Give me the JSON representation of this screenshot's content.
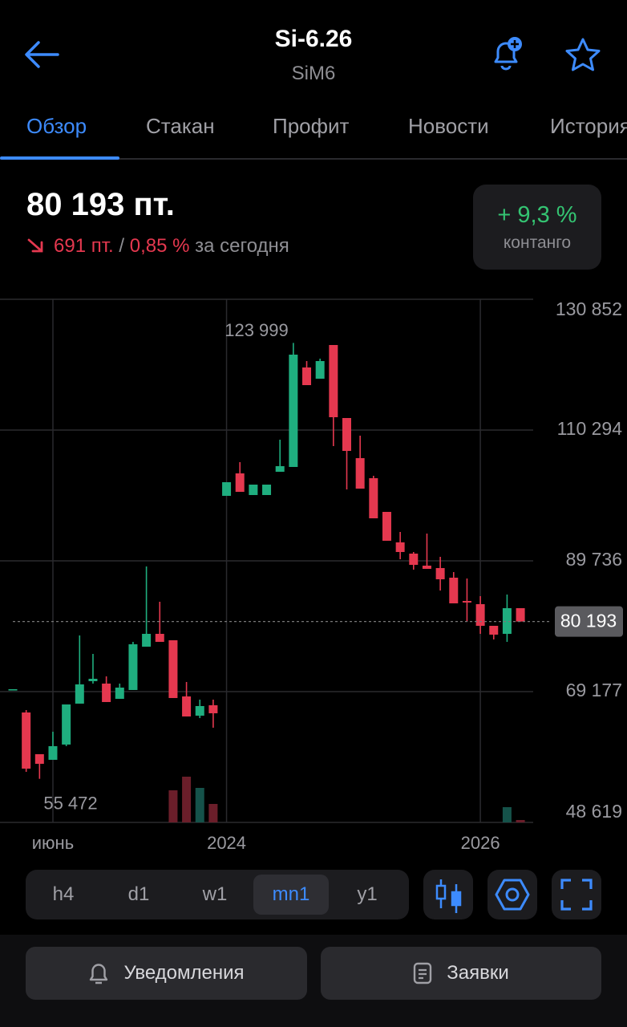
{
  "header": {
    "title": "Si-6.26",
    "subtitle": "SiM6"
  },
  "tabs": [
    "Обзор",
    "Стакан",
    "Профит",
    "Новости",
    "История"
  ],
  "quote": {
    "price": "80 193 пт.",
    "change_points": "691 пт.",
    "separator": "/",
    "change_percent": "0,85 %",
    "period": "за сегодня",
    "contango_value": "+ 9,3 %",
    "contango_label": "контанго"
  },
  "chart_data": {
    "type": "candlestick",
    "categories": [
      null,
      null,
      null,
      "июнь",
      null,
      null,
      null,
      null,
      null,
      null,
      null,
      null,
      null,
      null,
      null,
      null,
      "2024",
      null,
      null,
      null,
      null,
      null,
      null,
      null,
      null,
      null,
      null,
      null,
      null,
      null,
      null,
      null,
      null,
      null,
      null,
      "2026",
      null,
      null,
      null
    ],
    "open": [
      69560,
      65900,
      59340,
      58459,
      60855,
      67288,
      70819,
      70441,
      68044,
      69432,
      76242,
      78260,
      77251,
      68423,
      65396,
      67035,
      99953,
      103484,
      100079,
      100079,
      103736,
      104493,
      120132,
      118366,
      123663,
      112186,
      105880,
      102727,
      97430,
      92638,
      90872,
      88980,
      88602,
      87088,
      83431,
      82926,
      79521,
      78260,
      82296
    ],
    "high": [
      69560,
      66278,
      59340,
      62873,
      67161,
      78008,
      75107,
      71576,
      70441,
      76999,
      88854,
      83305,
      77251,
      70693,
      67918,
      67918,
      102097,
      105250,
      101718,
      101718,
      108781,
      123999,
      121141,
      121519,
      123663,
      112186,
      109412,
      103105,
      97430,
      94277,
      91124,
      94025,
      90367,
      87971,
      86962,
      84188,
      79521,
      84440,
      82296
    ],
    "low": [
      69560,
      56568,
      55472,
      58459,
      60603,
      67288,
      70441,
      67540,
      68044,
      69432,
      76242,
      76999,
      68170,
      65270,
      65017,
      63504,
      99953,
      100583,
      100079,
      100079,
      103736,
      104493,
      117357,
      118366,
      107772,
      100962,
      101088,
      96421,
      92890,
      89989,
      88350,
      88476,
      85070,
      83053,
      80152,
      78260,
      77377,
      76999,
      80193
    ],
    "close": [
      69560,
      57072,
      57829,
      60603,
      67161,
      70314,
      71197,
      67540,
      69810,
      76620,
      78260,
      76999,
      68170,
      65270,
      66909,
      65774,
      102097,
      100583,
      101718,
      101718,
      104619,
      122150,
      117357,
      121141,
      112312,
      107015,
      101088,
      96421,
      92890,
      91124,
      89106,
      88476,
      86836,
      83053,
      83179,
      79521,
      78134,
      82296,
      80193
    ],
    "volume": [
      null,
      null,
      null,
      null,
      null,
      null,
      null,
      null,
      null,
      null,
      null,
      null,
      40,
      57,
      43,
      23,
      null,
      null,
      null,
      null,
      null,
      null,
      null,
      null,
      null,
      null,
      null,
      null,
      null,
      null,
      null,
      null,
      null,
      null,
      null,
      null,
      null,
      19,
      3
    ],
    "up_color": "#1fae7f",
    "down_color": "#e5384f",
    "ylim": [
      48619,
      130852
    ],
    "yticks": [
      {
        "value": 48619,
        "label": "48 619"
      },
      {
        "value": 69177,
        "label": "69 177"
      },
      {
        "value": 89736,
        "label": "89 736"
      },
      {
        "value": 110294,
        "label": "110 294"
      },
      {
        "value": 130852,
        "label": "130 852"
      }
    ],
    "grid": true,
    "current_price": {
      "value": 80193,
      "label": "80 193"
    },
    "max_label": {
      "value": 123999,
      "label": "123 999"
    },
    "min_label": {
      "value": 55472,
      "label": "55 472"
    }
  },
  "timeframes": [
    "h4",
    "d1",
    "w1",
    "mn1",
    "y1"
  ],
  "buttons": [
    "Уведомления",
    "Заявки"
  ]
}
